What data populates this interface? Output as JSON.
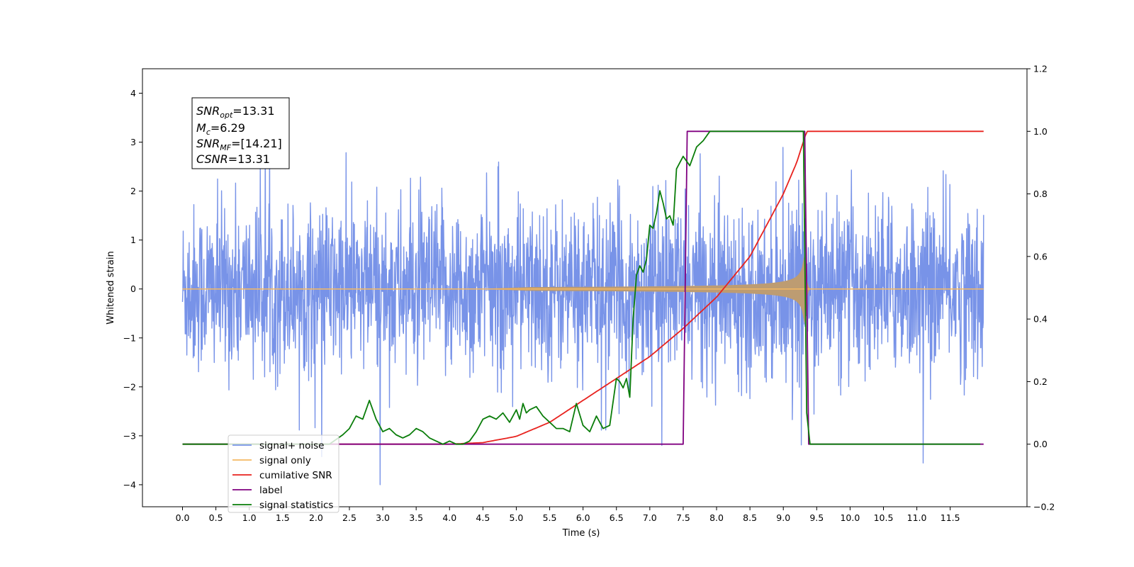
{
  "chart_data": {
    "type": "line",
    "title": "",
    "xlabel": "Time (s)",
    "ylabel": "Whitened strain",
    "xlim": [
      -0.6,
      12.65
    ],
    "ylim": [
      -4.45,
      4.5
    ],
    "y2lim": [
      -0.2,
      1.2
    ],
    "xticks": [
      "0.0",
      "0.5",
      "1.0",
      "1.5",
      "2.0",
      "2.5",
      "3.0",
      "3.5",
      "4.0",
      "4.5",
      "5.0",
      "5.5",
      "6.0",
      "6.5",
      "7.0",
      "7.5",
      "8.0",
      "8.5",
      "9.0",
      "9.5",
      "10.0",
      "10.5",
      "11.0",
      "11.5"
    ],
    "yticks": [
      "4",
      "3",
      "2",
      "1",
      "0",
      "−1",
      "−2",
      "−3",
      "−4"
    ],
    "y2ticks": [
      "1.2",
      "1.0",
      "0.8",
      "0.6",
      "0.4",
      "0.2",
      "0.0",
      "−0.2"
    ],
    "annotation": {
      "snr_opt": {
        "base": "SNR",
        "sub": "opt",
        "value": "=13.31"
      },
      "mc": {
        "base": "M",
        "sub": "c",
        "value": "=6.29"
      },
      "snr_mf": {
        "base": "SNR",
        "sub": "MF",
        "value": "=[14.21]"
      },
      "csnr": {
        "base": "CSNR",
        "sub": "",
        "value": "=13.31"
      }
    },
    "legend_location": "lower-left",
    "series": [
      {
        "name": "signal+ noise",
        "color": "#7893e8",
        "axis": "left",
        "description_values": {
          "x_start": 0.0,
          "x_end": 12.0,
          "approx_range": [
            -4.0,
            4.1
          ]
        }
      },
      {
        "name": "signal only",
        "color": "#f5b862",
        "axis": "left",
        "chirp": {
          "start": 4.4,
          "merger": 9.33,
          "peak_amplitude": 0.9,
          "ringdown_end": 9.4
        }
      },
      {
        "name": "cumilative SNR",
        "color": "#e8221e",
        "axis": "right",
        "x": [
          0.0,
          4.0,
          4.5,
          5.0,
          5.5,
          6.0,
          6.5,
          7.0,
          7.5,
          8.0,
          8.5,
          9.0,
          9.2,
          9.35,
          9.4,
          12.0
        ],
        "y": [
          0.0,
          0.0,
          0.005,
          0.025,
          0.07,
          0.14,
          0.21,
          0.28,
          0.37,
          0.47,
          0.6,
          0.8,
          0.9,
          1.0,
          1.0,
          1.0
        ]
      },
      {
        "name": "label",
        "color": "#800080",
        "axis": "right",
        "x": [
          0.0,
          7.5,
          7.56,
          9.32,
          9.38,
          12.0
        ],
        "y": [
          0.0,
          0.0,
          1.0,
          1.0,
          0.0,
          0.0
        ]
      },
      {
        "name": "signal statistics",
        "color": "#0a7d0a",
        "axis": "right",
        "x": [
          0.0,
          2.2,
          2.4,
          2.5,
          2.6,
          2.7,
          2.8,
          2.9,
          3.0,
          3.1,
          3.2,
          3.3,
          3.4,
          3.5,
          3.6,
          3.7,
          3.8,
          3.9,
          4.0,
          4.1,
          4.2,
          4.3,
          4.4,
          4.5,
          4.6,
          4.7,
          4.8,
          4.9,
          5.0,
          5.05,
          5.1,
          5.15,
          5.2,
          5.3,
          5.4,
          5.5,
          5.6,
          5.7,
          5.8,
          5.9,
          6.0,
          6.1,
          6.2,
          6.3,
          6.4,
          6.5,
          6.55,
          6.6,
          6.65,
          6.7,
          6.75,
          6.8,
          6.85,
          6.9,
          6.95,
          7.0,
          7.05,
          7.1,
          7.15,
          7.2,
          7.25,
          7.3,
          7.35,
          7.4,
          7.5,
          7.6,
          7.7,
          7.8,
          7.9,
          8.0,
          8.2,
          8.5,
          9.0,
          9.3,
          9.35,
          9.4,
          11.95
        ],
        "y": [
          0.0,
          0.0,
          0.03,
          0.05,
          0.09,
          0.08,
          0.14,
          0.08,
          0.04,
          0.05,
          0.03,
          0.02,
          0.03,
          0.05,
          0.04,
          0.02,
          0.01,
          0.0,
          0.01,
          0.0,
          0.0,
          0.01,
          0.04,
          0.08,
          0.09,
          0.08,
          0.1,
          0.07,
          0.11,
          0.08,
          0.13,
          0.1,
          0.11,
          0.12,
          0.09,
          0.07,
          0.05,
          0.05,
          0.04,
          0.13,
          0.06,
          0.04,
          0.09,
          0.05,
          0.06,
          0.21,
          0.2,
          0.18,
          0.21,
          0.15,
          0.4,
          0.54,
          0.57,
          0.55,
          0.59,
          0.7,
          0.69,
          0.74,
          0.81,
          0.77,
          0.72,
          0.73,
          0.7,
          0.88,
          0.92,
          0.89,
          0.95,
          0.97,
          1.0,
          1.0,
          1.0,
          1.0,
          1.0,
          1.0,
          0.1,
          0.0,
          0.0
        ]
      }
    ]
  }
}
